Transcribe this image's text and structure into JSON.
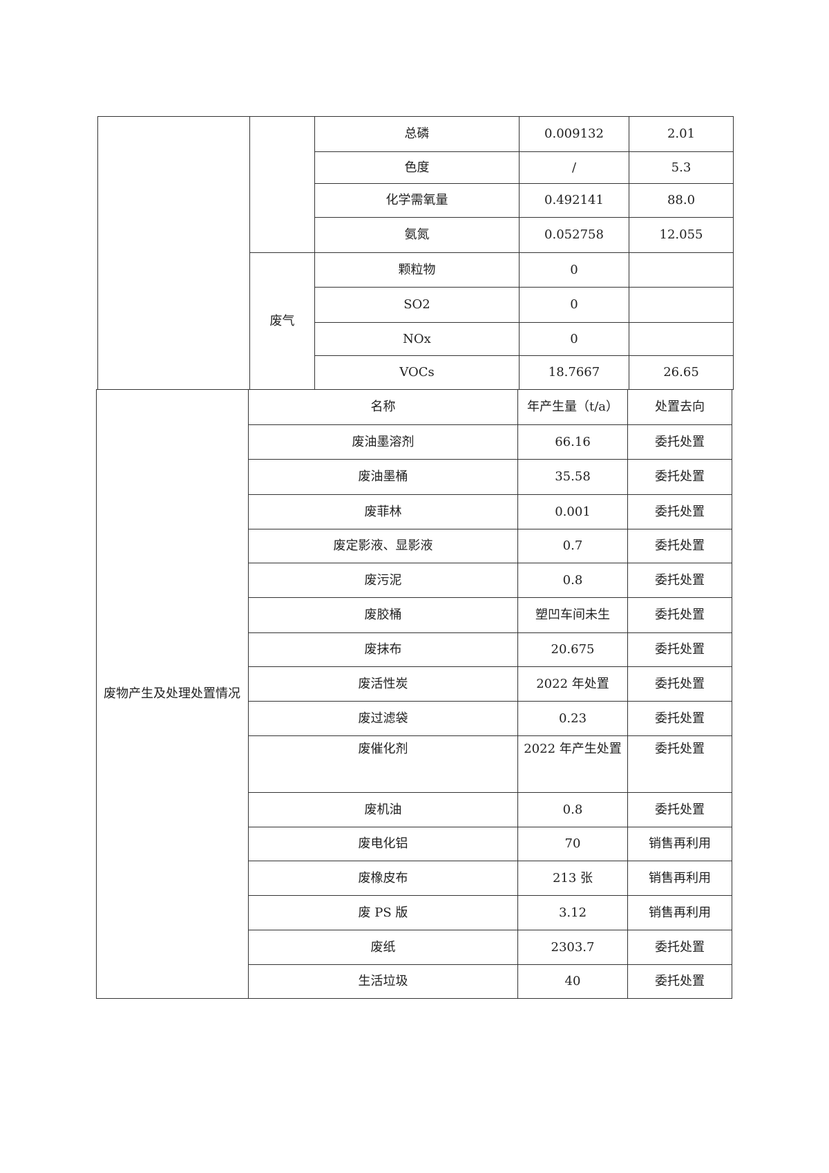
{
  "emissions": {
    "wastewater_rows": [
      {
        "name": "总磷",
        "value": "0.009132",
        "limit": "2.01"
      },
      {
        "name": "色度",
        "value": "/",
        "limit": "5.3"
      },
      {
        "name": "化学需氧量",
        "value": "0.492141",
        "limit": "88.0"
      },
      {
        "name": "氨氮",
        "value": "0.052758",
        "limit": "12.055"
      }
    ],
    "waste_gas_label": "废气",
    "waste_gas_rows": [
      {
        "name": "颗粒物",
        "value": "0",
        "limit": ""
      },
      {
        "name": "SO2",
        "value": "0",
        "limit": ""
      },
      {
        "name": "NOx",
        "value": "0",
        "limit": ""
      },
      {
        "name": "VOCs",
        "value": "18.7667",
        "limit": "26.65"
      }
    ]
  },
  "solid_waste": {
    "category_label": "废物产生及处理处置情况",
    "headers": {
      "name": "名称",
      "amount": "年产生量（t/a）",
      "disposal": "处置去向"
    },
    "rows": [
      {
        "name": "废油墨溶剂",
        "amount": "66.16",
        "disposal": "委托处置"
      },
      {
        "name": "废油墨桶",
        "amount": "35.58",
        "disposal": "委托处置"
      },
      {
        "name": "废菲林",
        "amount": "0.001",
        "disposal": "委托处置"
      },
      {
        "name": "废定影液、显影液",
        "amount": "0.7",
        "disposal": "委托处置"
      },
      {
        "name": "废污泥",
        "amount": "0.8",
        "disposal": "委托处置"
      },
      {
        "name": "废胶桶",
        "amount": "塑凹车间未生",
        "disposal": "委托处置"
      },
      {
        "name": "废抹布",
        "amount": "20.675",
        "disposal": "委托处置"
      },
      {
        "name": "废活性炭",
        "amount": "2022 年处置",
        "disposal": "委托处置"
      },
      {
        "name": "废过滤袋",
        "amount": "0.23",
        "disposal": "委托处置"
      },
      {
        "name": "废催化剂",
        "amount": "2022 年产生处置",
        "disposal": "委托处置"
      },
      {
        "name": "废机油",
        "amount": "0.8",
        "disposal": "委托处置"
      },
      {
        "name": "废电化铝",
        "amount": "70",
        "disposal": "销售再利用"
      },
      {
        "name": "废橡皮布",
        "amount": "213 张",
        "disposal": "销售再利用"
      },
      {
        "name": "废 PS 版",
        "amount": "3.12",
        "disposal": "销售再利用"
      },
      {
        "name": "废纸",
        "amount": "2303.7",
        "disposal": "委托处置"
      },
      {
        "name": "生活垃圾",
        "amount": "40",
        "disposal": "委托处置"
      }
    ]
  }
}
